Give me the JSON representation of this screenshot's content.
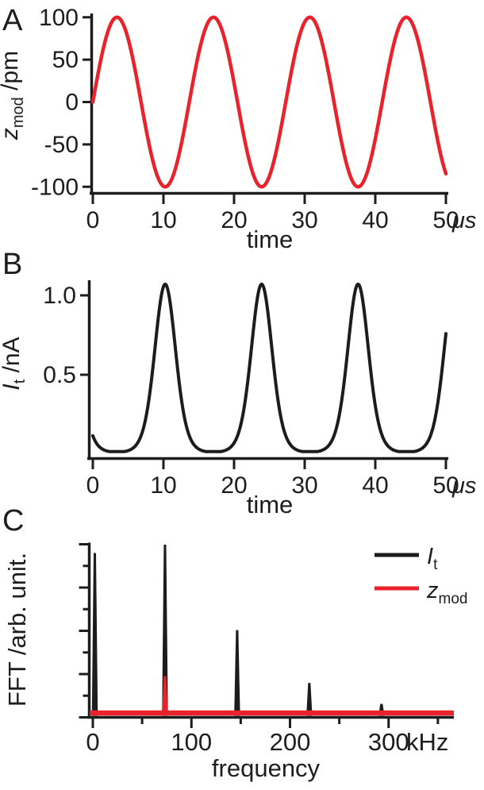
{
  "colors": {
    "red": "#e8232b",
    "black": "#1c1c1c",
    "ink": "#1d1d20"
  },
  "figure": {
    "panel_labels": [
      "A",
      "B",
      "C"
    ]
  },
  "chart_data": [
    {
      "panel_label": "A",
      "type": "line",
      "xlabel": "time",
      "x_unit": "μs",
      "ylabel": {
        "italic": "z",
        "sub": "mod",
        "rest": " /pm"
      },
      "xlim": [
        0,
        50
      ],
      "ylim": [
        -100,
        100
      ],
      "xtick_values": [
        0,
        10,
        20,
        30,
        40,
        50
      ],
      "xtick_labels": [
        "0",
        "10",
        "20",
        "30",
        "40",
        "50"
      ],
      "ytick_values": [
        -100,
        -50,
        0,
        50,
        100
      ],
      "ytick_labels": [
        "-100",
        "-50",
        "0",
        "50",
        "100"
      ],
      "grid": false,
      "series": [
        {
          "name": "z_mod",
          "color": "#e8232b",
          "waveform": "sine",
          "amplitude_pm": 100,
          "period_us": 13.66,
          "frequency_khz": 73.2,
          "phase_deg": 0,
          "t_start_us": 0,
          "t_end_us": 50
        }
      ]
    },
    {
      "panel_label": "B",
      "type": "line",
      "xlabel": "time",
      "x_unit": "μs",
      "ylabel": {
        "italic": "I",
        "sub": "t",
        "rest": " /nA"
      },
      "xlim": [
        0,
        50
      ],
      "ylim": [
        0,
        1.12
      ],
      "xtick_values": [
        0,
        10,
        20,
        30,
        40,
        50
      ],
      "xtick_labels": [
        "0",
        "10",
        "20",
        "30",
        "40",
        "50"
      ],
      "ytick_values": [
        0.5,
        1.0
      ],
      "ytick_labels": [
        "0.5",
        "1.0"
      ],
      "grid": false,
      "series": [
        {
          "name": "I_t",
          "color": "#1c1c1c",
          "model": "exp_of_sine_modulation",
          "peak_nA": 1.07,
          "baseline_nA": 0.016,
          "decay_const_pm": 45,
          "modulation_amplitude_pm": 100,
          "modulation_period_us": 13.66,
          "peak_times_us": [
            10.25,
            23.91,
            37.57
          ],
          "t_start_us": 0,
          "t_end_us": 50
        }
      ]
    },
    {
      "panel_label": "C",
      "type": "spikes",
      "xlabel": "frequency",
      "x_unit": "kHz",
      "ylabel_text": "FFT /arb. unit.",
      "xlim": [
        0,
        365
      ],
      "ylim_arb": [
        0,
        1.04
      ],
      "xtick_values": [
        0,
        100,
        200,
        300
      ],
      "xtick_labels": [
        "0",
        "100",
        "200",
        "300"
      ],
      "xtick_minor_values": [
        50,
        150,
        250,
        350
      ],
      "ytick_count": 9,
      "legend_position": "top-right",
      "legend": [
        {
          "label": {
            "italic": "I",
            "sub": "t",
            "rest": ""
          },
          "color": "#1c1c1c"
        },
        {
          "label": {
            "italic": "z",
            "sub": "mod",
            "rest": ""
          },
          "color": "#e8232b"
        }
      ],
      "series": [
        {
          "name": "I_t FFT",
          "color": "#1c1c1c",
          "peaks": [
            {
              "freq_khz": 0,
              "height": 0.95
            },
            {
              "freq_khz": 73.2,
              "height": 1.0
            },
            {
              "freq_khz": 146.4,
              "height": 0.49
            },
            {
              "freq_khz": 219.6,
              "height": 0.175
            },
            {
              "freq_khz": 292.8,
              "height": 0.05
            }
          ]
        },
        {
          "name": "z_mod FFT",
          "color": "#e8232b",
          "baseline_height": 0.02,
          "peaks": [
            {
              "freq_khz": 73.2,
              "height": 0.215
            }
          ]
        }
      ]
    }
  ]
}
